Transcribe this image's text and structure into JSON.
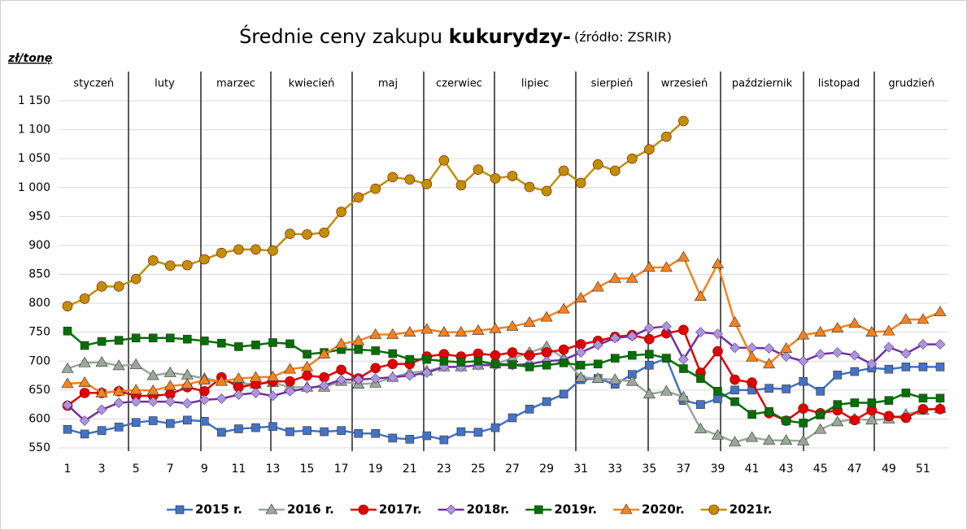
{
  "chart_data": {
    "type": "line",
    "title": "Średnie ceny zakupu ",
    "title_bold": "kukurydzy-",
    "source": "(źródło: ZSRIR)",
    "y_label": "zł/tonę",
    "months": [
      "styczeń",
      "luty",
      "marzec",
      "kwiecień",
      "maj",
      "czerwiec",
      "lipiec",
      "sierpień",
      "wrzesień",
      "październik",
      "listopad",
      "grudzień"
    ],
    "x": [
      1,
      2,
      3,
      4,
      5,
      6,
      7,
      8,
      9,
      10,
      11,
      12,
      13,
      14,
      15,
      16,
      17,
      18,
      19,
      20,
      21,
      22,
      23,
      24,
      25,
      26,
      27,
      28,
      29,
      30,
      31,
      32,
      33,
      34,
      35,
      36,
      37,
      38,
      39,
      40,
      41,
      42,
      43,
      44,
      45,
      46,
      47,
      48,
      49,
      50,
      51,
      52
    ],
    "xlim": [
      0.5,
      52.5
    ],
    "xticks": [
      1,
      3,
      5,
      7,
      9,
      11,
      13,
      15,
      17,
      19,
      21,
      23,
      25,
      27,
      29,
      31,
      33,
      35,
      37,
      39,
      41,
      43,
      45,
      47,
      49,
      51
    ],
    "ylim": [
      550,
      1150
    ],
    "yticks": [
      550,
      600,
      650,
      700,
      750,
      800,
      850,
      900,
      950,
      {
        "value": 1000,
        "label": "1 000"
      },
      {
        "value": 1050,
        "label": "1 050"
      },
      {
        "value": 1100,
        "label": "1 100"
      },
      {
        "value": 1150,
        "label": "1 150"
      }
    ],
    "grid": true,
    "legend": "bottom",
    "series": [
      {
        "name": "2015 r.",
        "color": "#4472c4",
        "marker": "square",
        "values": [
          582,
          574,
          580,
          586,
          594,
          597,
          592,
          598,
          596,
          577,
          583,
          585,
          587,
          578,
          580,
          578,
          580,
          575,
          575,
          567,
          565,
          571,
          564,
          578,
          577,
          585,
          602,
          617,
          630,
          643,
          668,
          670,
          660,
          677,
          693,
          705,
          632,
          625,
          635,
          650,
          650,
          653,
          652,
          665,
          648,
          676,
          682,
          688,
          686,
          690,
          690,
          690
        ]
      },
      {
        "name": "2016 r.",
        "color": "#9aa89a",
        "marker": "triangle",
        "values": [
          687,
          697,
          698,
          692,
          694,
          675,
          680,
          676,
          670,
          665,
          662,
          660,
          663,
          655,
          655,
          655,
          665,
          660,
          662,
          672,
          680,
          683,
          690,
          690,
          693,
          695,
          705,
          715,
          725,
          705,
          672,
          670,
          668,
          665,
          643,
          648,
          638,
          583,
          572,
          560,
          568,
          563,
          563,
          562,
          582,
          595,
          600,
          598,
          600,
          608,
          615,
          618
        ]
      },
      {
        "name": "2017r.",
        "color": "#e00000",
        "marker": "circle",
        "values": [
          623,
          645,
          645,
          648,
          640,
          640,
          643,
          655,
          648,
          672,
          655,
          660,
          665,
          665,
          675,
          672,
          685,
          670,
          688,
          695,
          695,
          708,
          712,
          708,
          713,
          710,
          715,
          710,
          715,
          720,
          729,
          735,
          742,
          745,
          738,
          748,
          754,
          680,
          717,
          668,
          663,
          610,
          597,
          618,
          610,
          615,
          598,
          615,
          605,
          602,
          617,
          617
        ]
      },
      {
        "name": "2018r.",
        "color": "#7030a0",
        "marker": "diamond",
        "values": [
          624,
          597,
          616,
          628,
          630,
          630,
          630,
          627,
          633,
          635,
          642,
          645,
          640,
          648,
          653,
          658,
          668,
          668,
          670,
          672,
          675,
          680,
          690,
          690,
          693,
          693,
          693,
          695,
          700,
          702,
          715,
          728,
          740,
          743,
          757,
          760,
          703,
          750,
          747,
          723,
          723,
          722,
          708,
          700,
          712,
          715,
          710,
          695,
          724,
          713,
          729,
          729
        ]
      },
      {
        "name": "2019r.",
        "color": "#007000",
        "marker": "square",
        "values": [
          752,
          727,
          734,
          736,
          740,
          740,
          740,
          738,
          735,
          731,
          725,
          728,
          732,
          730,
          712,
          715,
          720,
          720,
          718,
          713,
          703,
          703,
          700,
          698,
          700,
          695,
          694,
          690,
          693,
          697,
          693,
          695,
          705,
          710,
          712,
          705,
          687,
          670,
          648,
          630,
          608,
          613,
          597,
          593,
          607,
          625,
          628,
          628,
          632,
          645,
          636,
          636
        ]
      },
      {
        "name": "2020r.",
        "color": "#f58220",
        "marker": "triangle",
        "values": [
          661,
          663,
          645,
          648,
          650,
          649,
          657,
          660,
          667,
          665,
          670,
          672,
          673,
          686,
          690,
          712,
          730,
          735,
          746,
          746,
          750,
          755,
          750,
          750,
          753,
          756,
          760,
          767,
          776,
          790,
          809,
          828,
          843,
          843,
          862,
          862,
          880,
          812,
          868,
          767,
          707,
          695,
          722,
          745,
          750,
          757,
          765,
          750,
          752,
          772,
          772,
          785
        ]
      },
      {
        "name": "2021r.",
        "color": "#bf9000",
        "marker": "circle",
        "values": [
          795,
          808,
          829,
          829,
          842,
          874,
          865,
          866,
          876,
          887,
          893,
          893,
          891,
          920,
          919,
          922,
          958,
          983,
          998,
          1018,
          1014,
          1006,
          1047,
          1004,
          1031,
          1016,
          1020,
          1001,
          994,
          1029,
          1008,
          1040,
          1029,
          1050,
          1066,
          1088,
          1115,
          null,
          null,
          null,
          null,
          null,
          null,
          null,
          null,
          null,
          null,
          null,
          null,
          null,
          null,
          null
        ]
      }
    ]
  }
}
